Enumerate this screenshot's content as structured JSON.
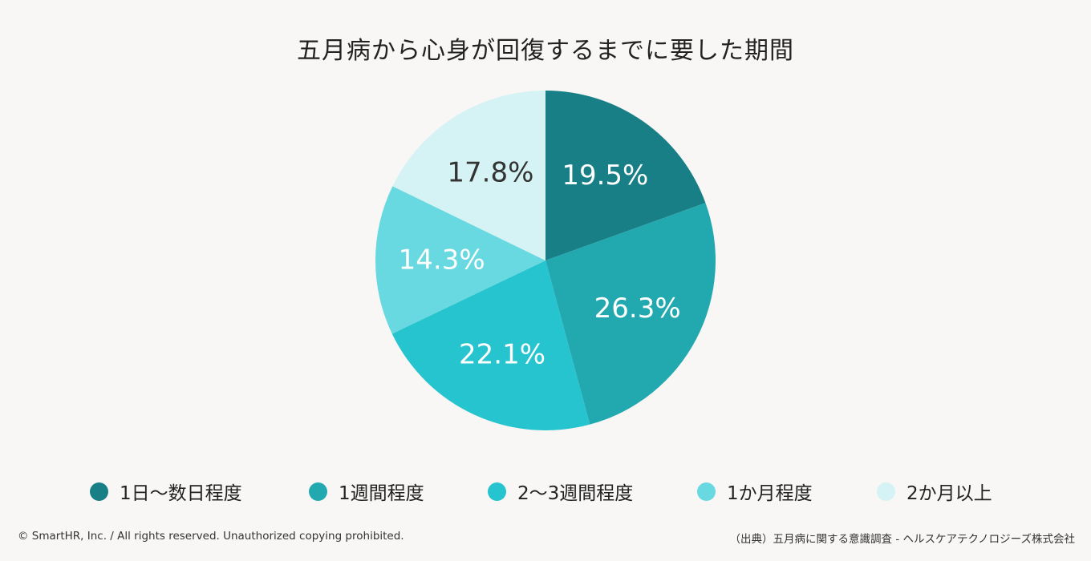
{
  "chart_data": {
    "type": "pie",
    "title": "五月病から心身が回復するまでに要した期間",
    "start_angle": "12 o'clock",
    "direction": "clockwise",
    "slices": [
      {
        "label": "1日〜数日程度",
        "value": 19.5,
        "display": "19.5%",
        "color": "#177f85",
        "text_color": "#ffffff"
      },
      {
        "label": "1週間程度",
        "value": 26.3,
        "display": "26.3%",
        "color": "#22a9b0",
        "text_color": "#ffffff"
      },
      {
        "label": "2〜3週間程度",
        "value": 22.1,
        "display": "22.1%",
        "color": "#26c4ce",
        "text_color": "#ffffff"
      },
      {
        "label": "1か月程度",
        "value": 14.3,
        "display": "14.3%",
        "color": "#68d9e0",
        "text_color": "#ffffff"
      },
      {
        "label": "2か月以上",
        "value": 17.8,
        "display": "17.8%",
        "color": "#d5f3f4",
        "text_color": "#333333"
      }
    ],
    "legend": "bottom"
  },
  "footer": {
    "copyright": "© SmartHR, Inc. / All rights reserved. Unauthorized copying prohibited.",
    "source": "（出典）五月病に関する意識調査 - ヘルスケアテクノロジーズ株式会社"
  }
}
